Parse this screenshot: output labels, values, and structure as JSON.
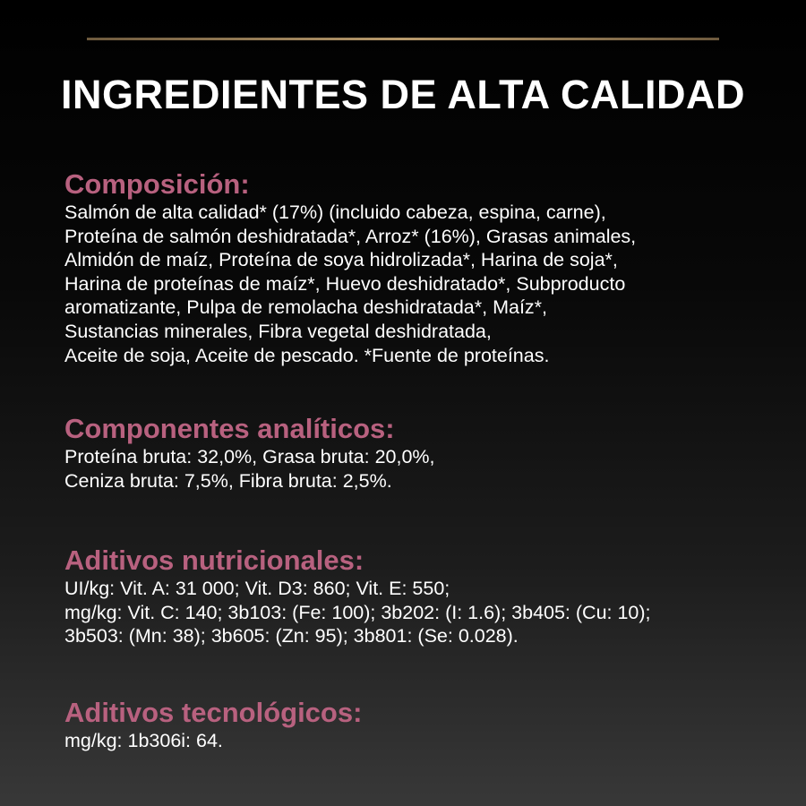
{
  "title": "INGREDIENTES DE ALTA CALIDAD",
  "accent_color": "#b8617f",
  "sections": [
    {
      "heading": "Composición:",
      "lines": [
        "Salmón de alta calidad* (17%) (incluido cabeza, espina, carne),",
        "Proteína de salmón deshidratada*, Arroz* (16%), Grasas animales,",
        "Almidón de maíz, Proteína de soya hidrolizada*, Harina de soja*,",
        "Harina de proteínas de maíz*, Huevo deshidratado*, Subproducto",
        "aromatizante, Pulpa de remolacha deshidratada*, Maíz*,",
        "Sustancias minerales, Fibra vegetal deshidratada,",
        "Aceite de soja, Aceite de pescado. *Fuente de proteínas."
      ]
    },
    {
      "heading": "Componentes analíticos:",
      "lines": [
        "Proteína bruta: 32,0%, Grasa bruta: 20,0%,",
        "Ceniza bruta: 7,5%, Fibra bruta: 2,5%."
      ]
    },
    {
      "heading": "Aditivos nutricionales:",
      "lines": [
        "UI/kg: Vit. A: 31 000; Vit. D3: 860; Vit. E: 550;",
        "mg/kg: Vit. C: 140; 3b103: (Fe: 100); 3b202: (I: 1.6); 3b405: (Cu: 10);",
        "3b503: (Mn: 38); 3b605: (Zn: 95); 3b801: (Se: 0.028)."
      ]
    },
    {
      "heading": "Aditivos tecnológicos:",
      "lines": [
        "mg/kg: 1b306i: 64."
      ]
    }
  ]
}
